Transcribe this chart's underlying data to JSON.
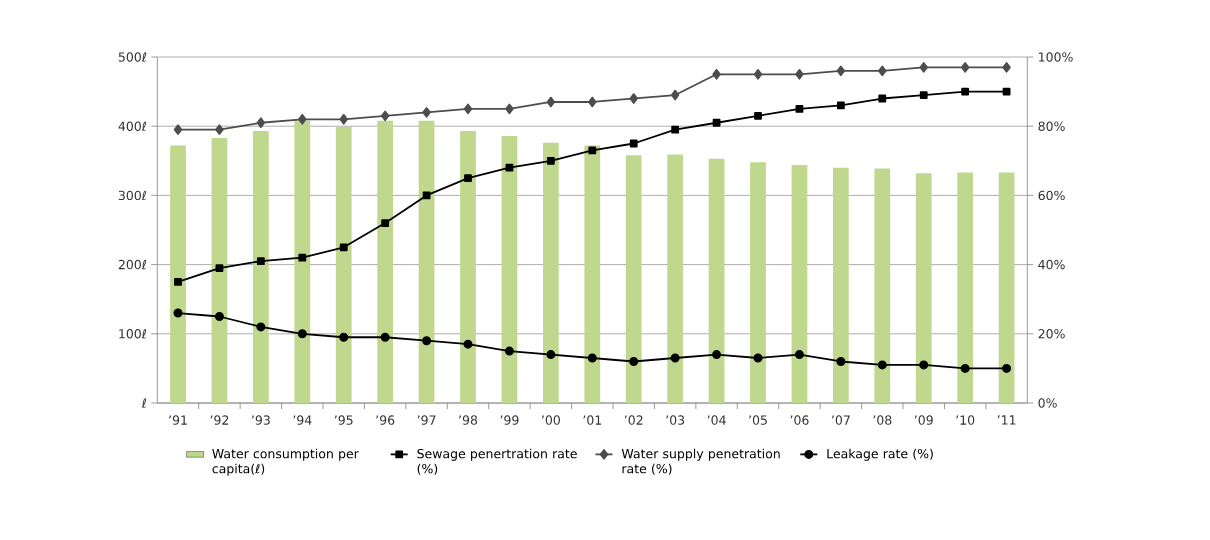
{
  "chart_data": {
    "type": "bar",
    "categories": [
      "’91",
      "’92",
      "’93",
      "’94",
      "’95",
      "’96",
      "’97",
      "’98",
      "’99",
      "’00",
      "’01",
      "’02",
      "’03",
      "’04",
      "’05",
      "’06",
      "’07",
      "’08",
      "’09",
      "’10",
      "’11"
    ],
    "series": [
      {
        "name": "Water consumption per capita(ℓ)",
        "color": "#c0d88e",
        "values": [
          372,
          383,
          393,
          408,
          399,
          408,
          408,
          393,
          386,
          376,
          372,
          358,
          359,
          353,
          348,
          344,
          340,
          339,
          332,
          333,
          333
        ]
      },
      {
        "name": "Sewage penertration rate (%)",
        "type": "line",
        "axis": "y2",
        "marker": "square",
        "color": "#000000",
        "values": [
          35,
          39,
          41,
          42,
          45,
          52,
          60,
          65,
          68,
          70,
          73,
          75,
          79,
          81,
          83,
          85,
          86,
          88,
          89,
          90,
          90
        ]
      },
      {
        "name": "Water supply penetration rate (%)",
        "type": "line",
        "axis": "y2",
        "marker": "diamond",
        "color": "#4d4d4d",
        "values": [
          79,
          79,
          81,
          82,
          82,
          83,
          84,
          85,
          85,
          87,
          87,
          88,
          89,
          95,
          95,
          95,
          96,
          96,
          97,
          97,
          97
        ]
      },
      {
        "name": "Leakage rate (%)",
        "type": "line",
        "axis": "y2",
        "marker": "circle",
        "color": "#000000",
        "values": [
          26,
          25,
          22,
          20,
          19,
          19,
          18,
          17,
          15,
          14,
          13,
          12,
          13,
          14,
          13,
          14,
          12,
          11,
          11,
          10,
          10
        ]
      }
    ],
    "ylim": [
      0,
      500
    ],
    "yticks": [
      {
        "value": 0,
        "label": "ℓ"
      },
      {
        "value": 100,
        "label": "100ℓ"
      },
      {
        "value": 200,
        "label": "200ℓ"
      },
      {
        "value": 300,
        "label": "300ℓ"
      },
      {
        "value": 400,
        "label": "400ℓ"
      },
      {
        "value": 500,
        "label": "500ℓ"
      }
    ],
    "y2lim": [
      0,
      100
    ],
    "y2ticks": [
      {
        "value": 0,
        "label": "0%"
      },
      {
        "value": 20,
        "label": "20%"
      },
      {
        "value": 40,
        "label": "40%"
      },
      {
        "value": 60,
        "label": "60%"
      },
      {
        "value": 80,
        "label": "80%"
      },
      {
        "value": 100,
        "label": "100%"
      }
    ],
    "grid": "y",
    "legend": "bottom",
    "line_style": "solid"
  }
}
